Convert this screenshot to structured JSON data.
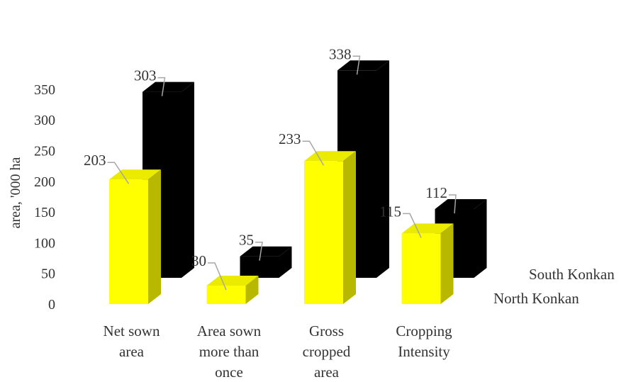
{
  "chart_data": {
    "type": "bar",
    "variant": "3d-column",
    "title": "",
    "xlabel": "",
    "ylabel": "area, '000 ha",
    "ylim": [
      0,
      350
    ],
    "yticks": [
      "0",
      "50",
      "100",
      "150",
      "200",
      "250",
      "300",
      "350"
    ],
    "grid": false,
    "categories": [
      [
        "Net sown",
        "area"
      ],
      [
        "Area sown",
        "more than",
        "once"
      ],
      [
        "Gross",
        "cropped",
        "area"
      ],
      [
        "Cropping",
        "Intensity"
      ]
    ],
    "series": [
      {
        "name": "North Konkan",
        "color": "#ffff00",
        "values": [
          203,
          30,
          233,
          115
        ]
      },
      {
        "name": "South Konkan",
        "color": "#000000",
        "values": [
          303,
          35,
          338,
          112
        ]
      }
    ]
  }
}
